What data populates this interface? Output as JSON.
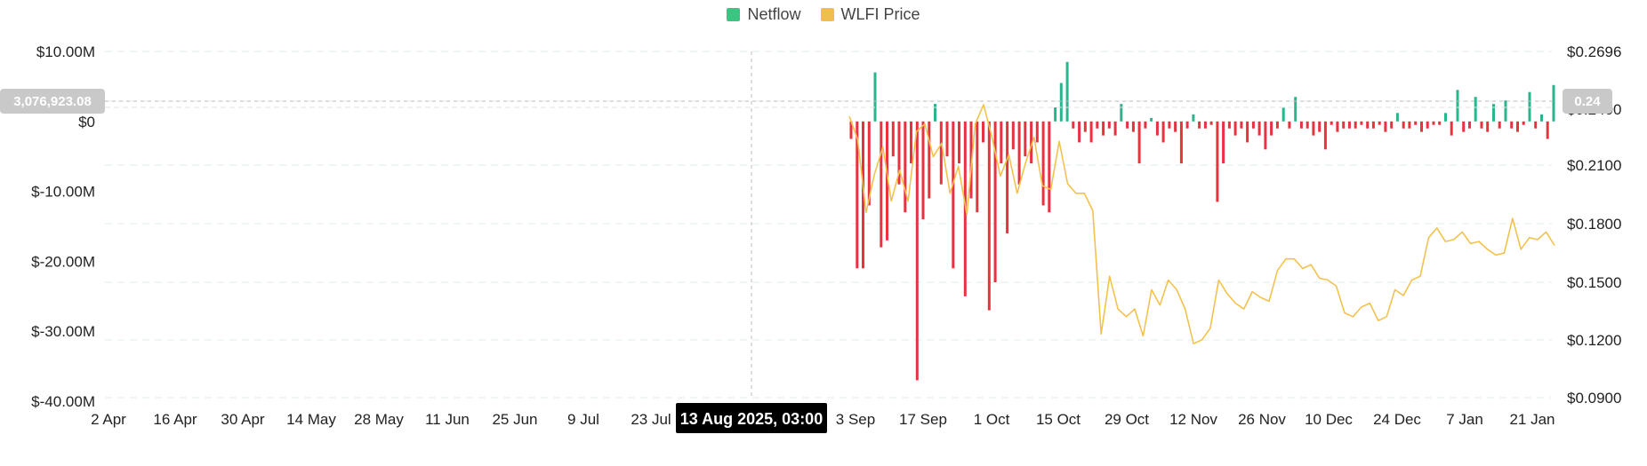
{
  "legend": {
    "netflow_label": "Netflow",
    "price_label": "WLFI Price"
  },
  "colors": {
    "positive": "#2bb58d",
    "negative": "#e8323f",
    "price": "#f3c24e",
    "netflow_legend": "#3cc482",
    "price_legend": "#f0bd4f",
    "grid": "#dcefe8",
    "badge": "#c9c9c9",
    "tooltip": "#000000"
  },
  "crosshair": {
    "date_label": "13 Aug 2025, 03:00",
    "netflow_label": "3,076,923.08",
    "price_label": "0.24"
  },
  "chart_data": {
    "type": "bar",
    "x_tick_labels": [
      "2 Apr",
      "16 Apr",
      "30 Apr",
      "14 May",
      "28 May",
      "11 Jun",
      "25 Jun",
      "9 Jul",
      "23 Jul",
      "13 Aug 2025, 03:00",
      "3 Sep",
      "17 Sep",
      "1 Oct",
      "15 Oct",
      "29 Oct",
      "12 Nov",
      "26 Nov",
      "10 Dec",
      "24 Dec",
      "7 Jan",
      "21 Jan"
    ],
    "y_left": {
      "ticks": [
        "$10.00M",
        "$0",
        "$-10.00M",
        "$-20.00M",
        "$-30.00M",
        "$-40.00M"
      ],
      "range": [
        -40,
        10
      ],
      "unit": "M"
    },
    "y_right": {
      "ticks": [
        "$0.2696",
        "$0.2400",
        "$0.2100",
        "$0.1800",
        "$0.1500",
        "$0.1200",
        "$0.0900"
      ],
      "range": [
        0.09,
        0.2696
      ]
    },
    "grid": true,
    "legend_position": "top-center",
    "series": [
      {
        "name": "Netflow",
        "type": "bar",
        "values": [
          -2.5,
          -21,
          -21,
          -12,
          7,
          -18,
          -17,
          -5,
          -9,
          -13,
          -6,
          -37,
          -14,
          -11,
          2.5,
          -9,
          -5,
          -21,
          -6,
          -25,
          -11,
          -13,
          -3,
          -27,
          -23,
          -6,
          -16,
          -4,
          -9,
          -5,
          -6,
          -3,
          -12,
          -13,
          2,
          5.5,
          8.5,
          -1,
          -3,
          -1.5,
          -3,
          -1,
          -2,
          -1,
          -2,
          2.5,
          -1,
          -1.5,
          -6,
          -1,
          0.5,
          -2,
          -3,
          -1,
          -1.5,
          -6,
          -1,
          1,
          -1,
          -1,
          -0.5,
          -11.5,
          -6,
          -1,
          -2,
          -1,
          -3,
          -1,
          -2,
          -4,
          -2,
          -1,
          2,
          -1,
          3.5,
          -1,
          -1,
          -2,
          -1.5,
          -4,
          -0.5,
          -1.5,
          -1,
          -1,
          -1,
          -0.5,
          -1,
          -1,
          -0.5,
          -1.5,
          -1,
          1.2,
          -1,
          -1,
          -0.5,
          -1.5,
          -1,
          -0.5,
          -0.5,
          1.2,
          -2,
          4.5,
          -1.5,
          -1,
          3.5,
          -1,
          -1.5,
          2.5,
          -1,
          3,
          -1,
          -1.5,
          -0.5,
          4.2,
          -1,
          1,
          -2.5,
          5.2
        ]
      },
      {
        "name": "WLFI Price",
        "type": "line",
        "values": [
          0.236,
          0.224,
          0.186,
          0.206,
          0.22,
          0.192,
          0.208,
          0.192,
          0.228,
          0.232,
          0.215,
          0.222,
          0.196,
          0.21,
          0.185,
          0.232,
          0.242,
          0.225,
          0.205,
          0.216,
          0.196,
          0.212,
          0.225,
          0.2,
          0.198,
          0.223,
          0.201,
          0.196,
          0.196,
          0.187,
          0.123,
          0.153,
          0.136,
          0.132,
          0.136,
          0.122,
          0.146,
          0.138,
          0.151,
          0.146,
          0.136,
          0.118,
          0.12,
          0.126,
          0.151,
          0.144,
          0.139,
          0.136,
          0.145,
          0.142,
          0.14,
          0.156,
          0.162,
          0.162,
          0.157,
          0.159,
          0.152,
          0.151,
          0.148,
          0.134,
          0.132,
          0.137,
          0.139,
          0.13,
          0.132,
          0.146,
          0.143,
          0.151,
          0.153,
          0.173,
          0.178,
          0.171,
          0.172,
          0.176,
          0.17,
          0.171,
          0.167,
          0.164,
          0.165,
          0.183,
          0.167,
          0.173,
          0.172,
          0.176,
          0.169
        ]
      }
    ]
  }
}
